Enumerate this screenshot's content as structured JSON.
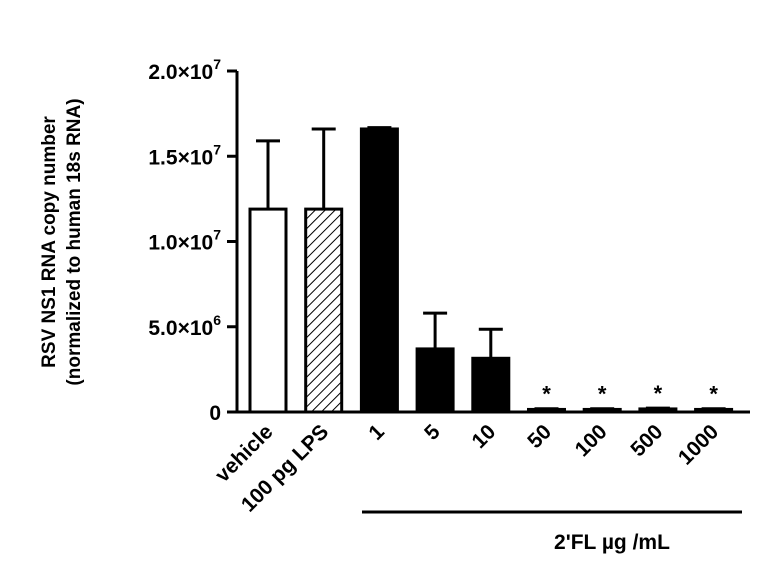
{
  "chart_data": {
    "type": "bar",
    "ylabel_line1": "RSV NS1 RNA copy number",
    "ylabel_line2": "(normalized to human 18s RNA)",
    "ylim": [
      0,
      20000000
    ],
    "yticks": [
      {
        "value": 0,
        "mantissa": "0",
        "exponent": ""
      },
      {
        "value": 5000000,
        "mantissa": "5.0×10",
        "exponent": "6"
      },
      {
        "value": 10000000,
        "mantissa": "1.0×10",
        "exponent": "7"
      },
      {
        "value": 15000000,
        "mantissa": "1.5×10",
        "exponent": "7"
      },
      {
        "value": 20000000,
        "mantissa": "2.0×10",
        "exponent": "7"
      }
    ],
    "categories": [
      "vehicle",
      "100 pg LPS",
      "1",
      "5",
      "10",
      "50",
      "100",
      "500",
      "1000"
    ],
    "values": [
      11900000,
      11900000,
      16600000,
      3700000,
      3150000,
      150000,
      150000,
      180000,
      150000
    ],
    "errors": [
      4000000,
      4700000,
      80000,
      2100000,
      1700000,
      40000,
      40000,
      50000,
      40000
    ],
    "fills": [
      "white",
      "hatched",
      "black",
      "black",
      "black",
      "black",
      "black",
      "black",
      "black"
    ],
    "significance": [
      "",
      "",
      "",
      "",
      "",
      "*",
      "*",
      "*",
      "*"
    ],
    "group_label": "2'FL µg /mL",
    "grid": false
  }
}
